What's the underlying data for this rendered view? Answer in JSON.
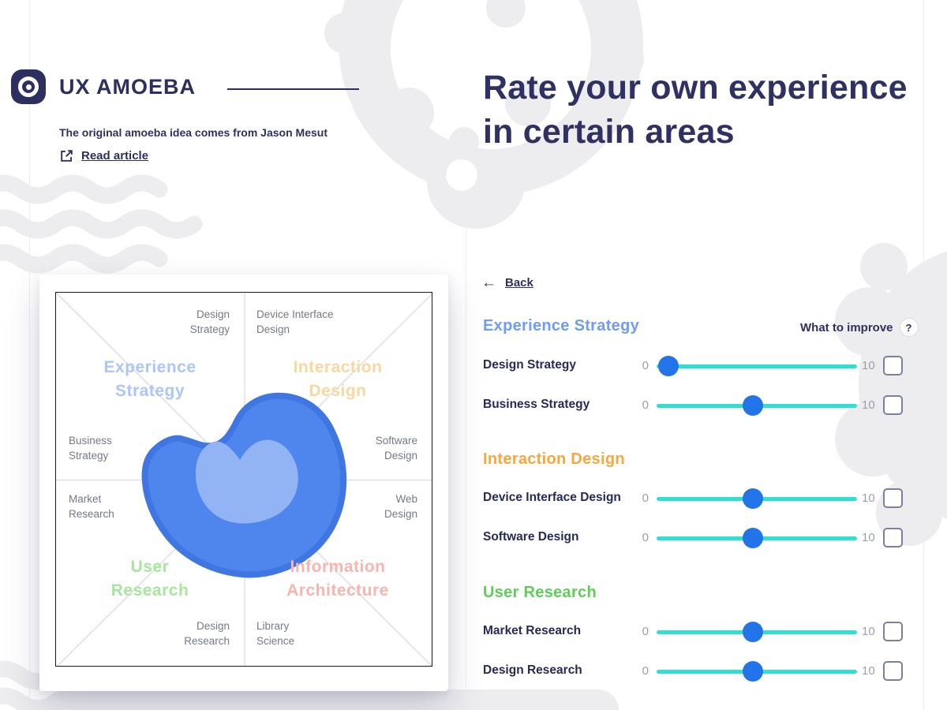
{
  "brand": {
    "name": "UX AMOEBA",
    "tagline": "The original amoeba idea comes from Jason Mesut",
    "link_label": "Read article"
  },
  "page": {
    "heading": "Rate your own experience in certain areas",
    "back_arrow": "←",
    "back_label": "Back",
    "improve_label": "What to improve",
    "improve_icon": "?"
  },
  "chart_data": {
    "type": "quadrant-amoeba",
    "title": "UX skills amoeba map",
    "quadrant_titles": {
      "experience_strategy": "Experience\nStrategy",
      "interaction_design": "Interaction\nDesign",
      "user_research": "User\nResearch",
      "information_architecture": "Information\nArchitecture"
    },
    "quadrant_colors": {
      "experience_strategy": "#aac7f8",
      "interaction_design": "#f7d8a0",
      "user_research": "#a6e69d",
      "information_architecture": "#f7b5ad"
    },
    "axis_labels": {
      "design_strategy": "Design\nStrategy",
      "device_interface_design": "Device Interface\nDesign",
      "business_strategy": "Business\nStrategy",
      "software_design": "Software\nDesign",
      "market_research": "Market\nResearch",
      "web_design": "Web\nDesign",
      "design_research": "Design\nResearch",
      "library_science": "Library\nScience"
    },
    "blob_colors": {
      "outer_fill": "#4f86ee",
      "outer_rim": "#3f76e2",
      "inner_fill": "#92b3f4"
    }
  },
  "slider": {
    "min_label": "0",
    "max_label": "10",
    "track_color": "#2ee0d4",
    "thumb_color": "#2373e9"
  },
  "sections": [
    {
      "title": "Experience Strategy",
      "color": "#6f9cf5",
      "rows": [
        {
          "label": "Design Strategy",
          "min": 0,
          "max": 10,
          "value": 0.6,
          "checked": false
        },
        {
          "label": "Business Strategy",
          "min": 0,
          "max": 10,
          "value": 4.8,
          "checked": false
        }
      ]
    },
    {
      "title": "Interaction Design",
      "color": "#f6a83d",
      "rows": [
        {
          "label": "Device Interface Design",
          "min": 0,
          "max": 10,
          "value": 4.8,
          "checked": false
        },
        {
          "label": "Software Design",
          "min": 0,
          "max": 10,
          "value": 4.8,
          "checked": false
        }
      ]
    },
    {
      "title": "User Research",
      "color": "#5fce57",
      "rows": [
        {
          "label": "Market Research",
          "min": 0,
          "max": 10,
          "value": 4.8,
          "checked": false
        },
        {
          "label": "Design Research",
          "min": 0,
          "max": 10,
          "value": 4.8,
          "checked": false
        }
      ]
    }
  ]
}
